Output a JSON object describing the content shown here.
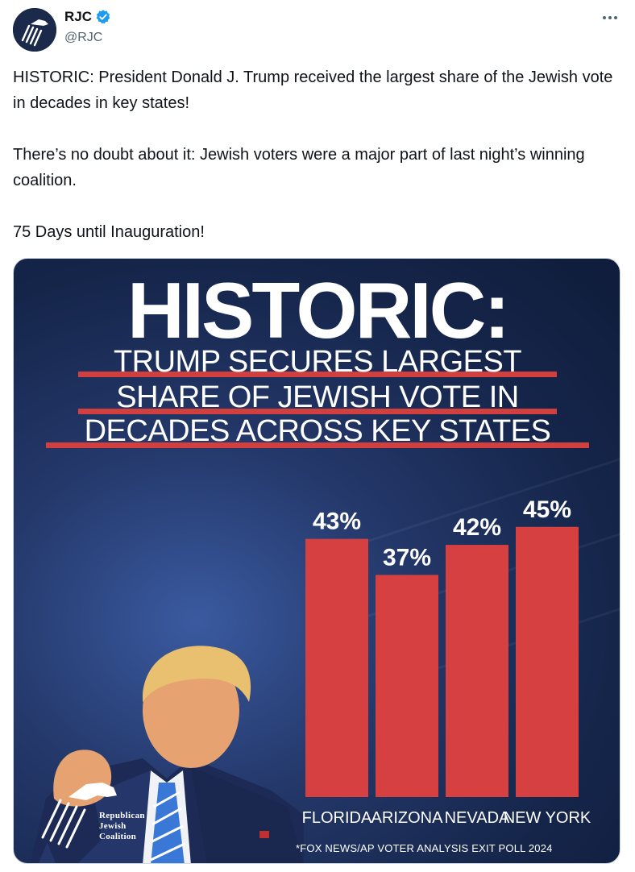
{
  "tweet": {
    "author_name": "RJC",
    "handle": "@RJC",
    "text_lines": [
      "HISTORIC: President Donald J. Trump received the largest share of the Jewish vote in decades in key states!",
      "There’s no doubt about it: Jewish voters were a major part of last night’s winning coalition.",
      "75 Days until Inauguration!"
    ]
  },
  "graphic": {
    "headline": "HISTORIC:",
    "subheadline_lines": [
      "TRUMP SECURES LARGEST",
      "SHARE OF JEWISH VOTE IN",
      "DECADES ACROSS KEY STATES"
    ],
    "footnote": "*FOX NEWS/AP VOTER ANALYSIS EXIT POLL 2024",
    "logo_text": [
      "Republican",
      "Jewish",
      "Coalition"
    ]
  },
  "colors": {
    "bar": "#d64040",
    "accent_underline": "#d13f3f",
    "verified": "#1d9bf0",
    "background_navy": "#15254a"
  },
  "chart_data": {
    "type": "bar",
    "categories": [
      "FLORIDA",
      "ARIZONA",
      "NEVADA",
      "NEW YORK"
    ],
    "values": [
      43,
      37,
      42,
      45
    ],
    "value_labels": [
      "43%",
      "37%",
      "42%",
      "45%"
    ],
    "ylim": [
      0,
      55
    ],
    "grid": false,
    "legend": "none"
  }
}
